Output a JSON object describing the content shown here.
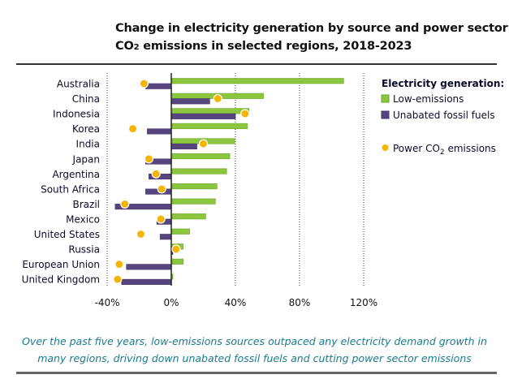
{
  "chart_data": {
    "type": "bar",
    "orientation": "horizontal",
    "title_line1": "Change in electricity generation by source and power sector",
    "title_line2_prefix": "CO",
    "title_line2_sub": "2",
    "title_line2_suffix": " emissions in selected regions, 2018-2023",
    "categories": [
      "Australia",
      "China",
      "Indonesia",
      "Korea",
      "India",
      "Japan",
      "Argentina",
      "South Africa",
      "Brazil",
      "Mexico",
      "United States",
      "Russia",
      "European Union",
      "United Kingdom"
    ],
    "series": [
      {
        "name": "Low-emissions",
        "kind": "bar",
        "color": "#8cc63f",
        "values": [
          107,
          57,
          48,
          47,
          39,
          36,
          34,
          28,
          27,
          21,
          11,
          7,
          7,
          0.5
        ]
      },
      {
        "name": "Unabated fossil fuels",
        "kind": "bar",
        "color": "#574580",
        "values": [
          -16,
          24,
          40,
          -15,
          16,
          -16,
          -14,
          -16,
          -35,
          -9,
          -7,
          1,
          -28,
          -31
        ]
      },
      {
        "name": "Power CO2 emissions",
        "kind": "dot",
        "color": "#f5b400",
        "values": [
          -17,
          29,
          46,
          -24,
          20,
          -14,
          -9.5,
          -6,
          -29,
          -6.5,
          -19,
          3,
          -32.5,
          -33.5
        ]
      }
    ],
    "xlim": [
      -40,
      120
    ],
    "xticks": [
      -40,
      0,
      40,
      80,
      120
    ],
    "xtick_labels": [
      "-40%",
      "0%",
      "40%",
      "80%",
      "120%"
    ],
    "xlabel": "",
    "ylabel": "",
    "grid": "vertical dotted",
    "legend": {
      "placement": "right",
      "title": "Electricity generation:",
      "items": [
        {
          "label": "Low-emissions",
          "marker": "square",
          "color": "#8cc63f"
        },
        {
          "label": "Unabated fossil fuels",
          "marker": "square",
          "color": "#574580"
        },
        {
          "label_prefix": "Power CO",
          "label_sub": "2",
          "label_suffix": " emissions",
          "marker": "circle",
          "color": "#f5b400"
        }
      ]
    }
  },
  "caption": {
    "line1": "Over the past five years, low-emissions sources outpaced any electricity demand growth in",
    "line2": "many regions, driving down unabated fossil fuels and cutting power sector emissions"
  }
}
